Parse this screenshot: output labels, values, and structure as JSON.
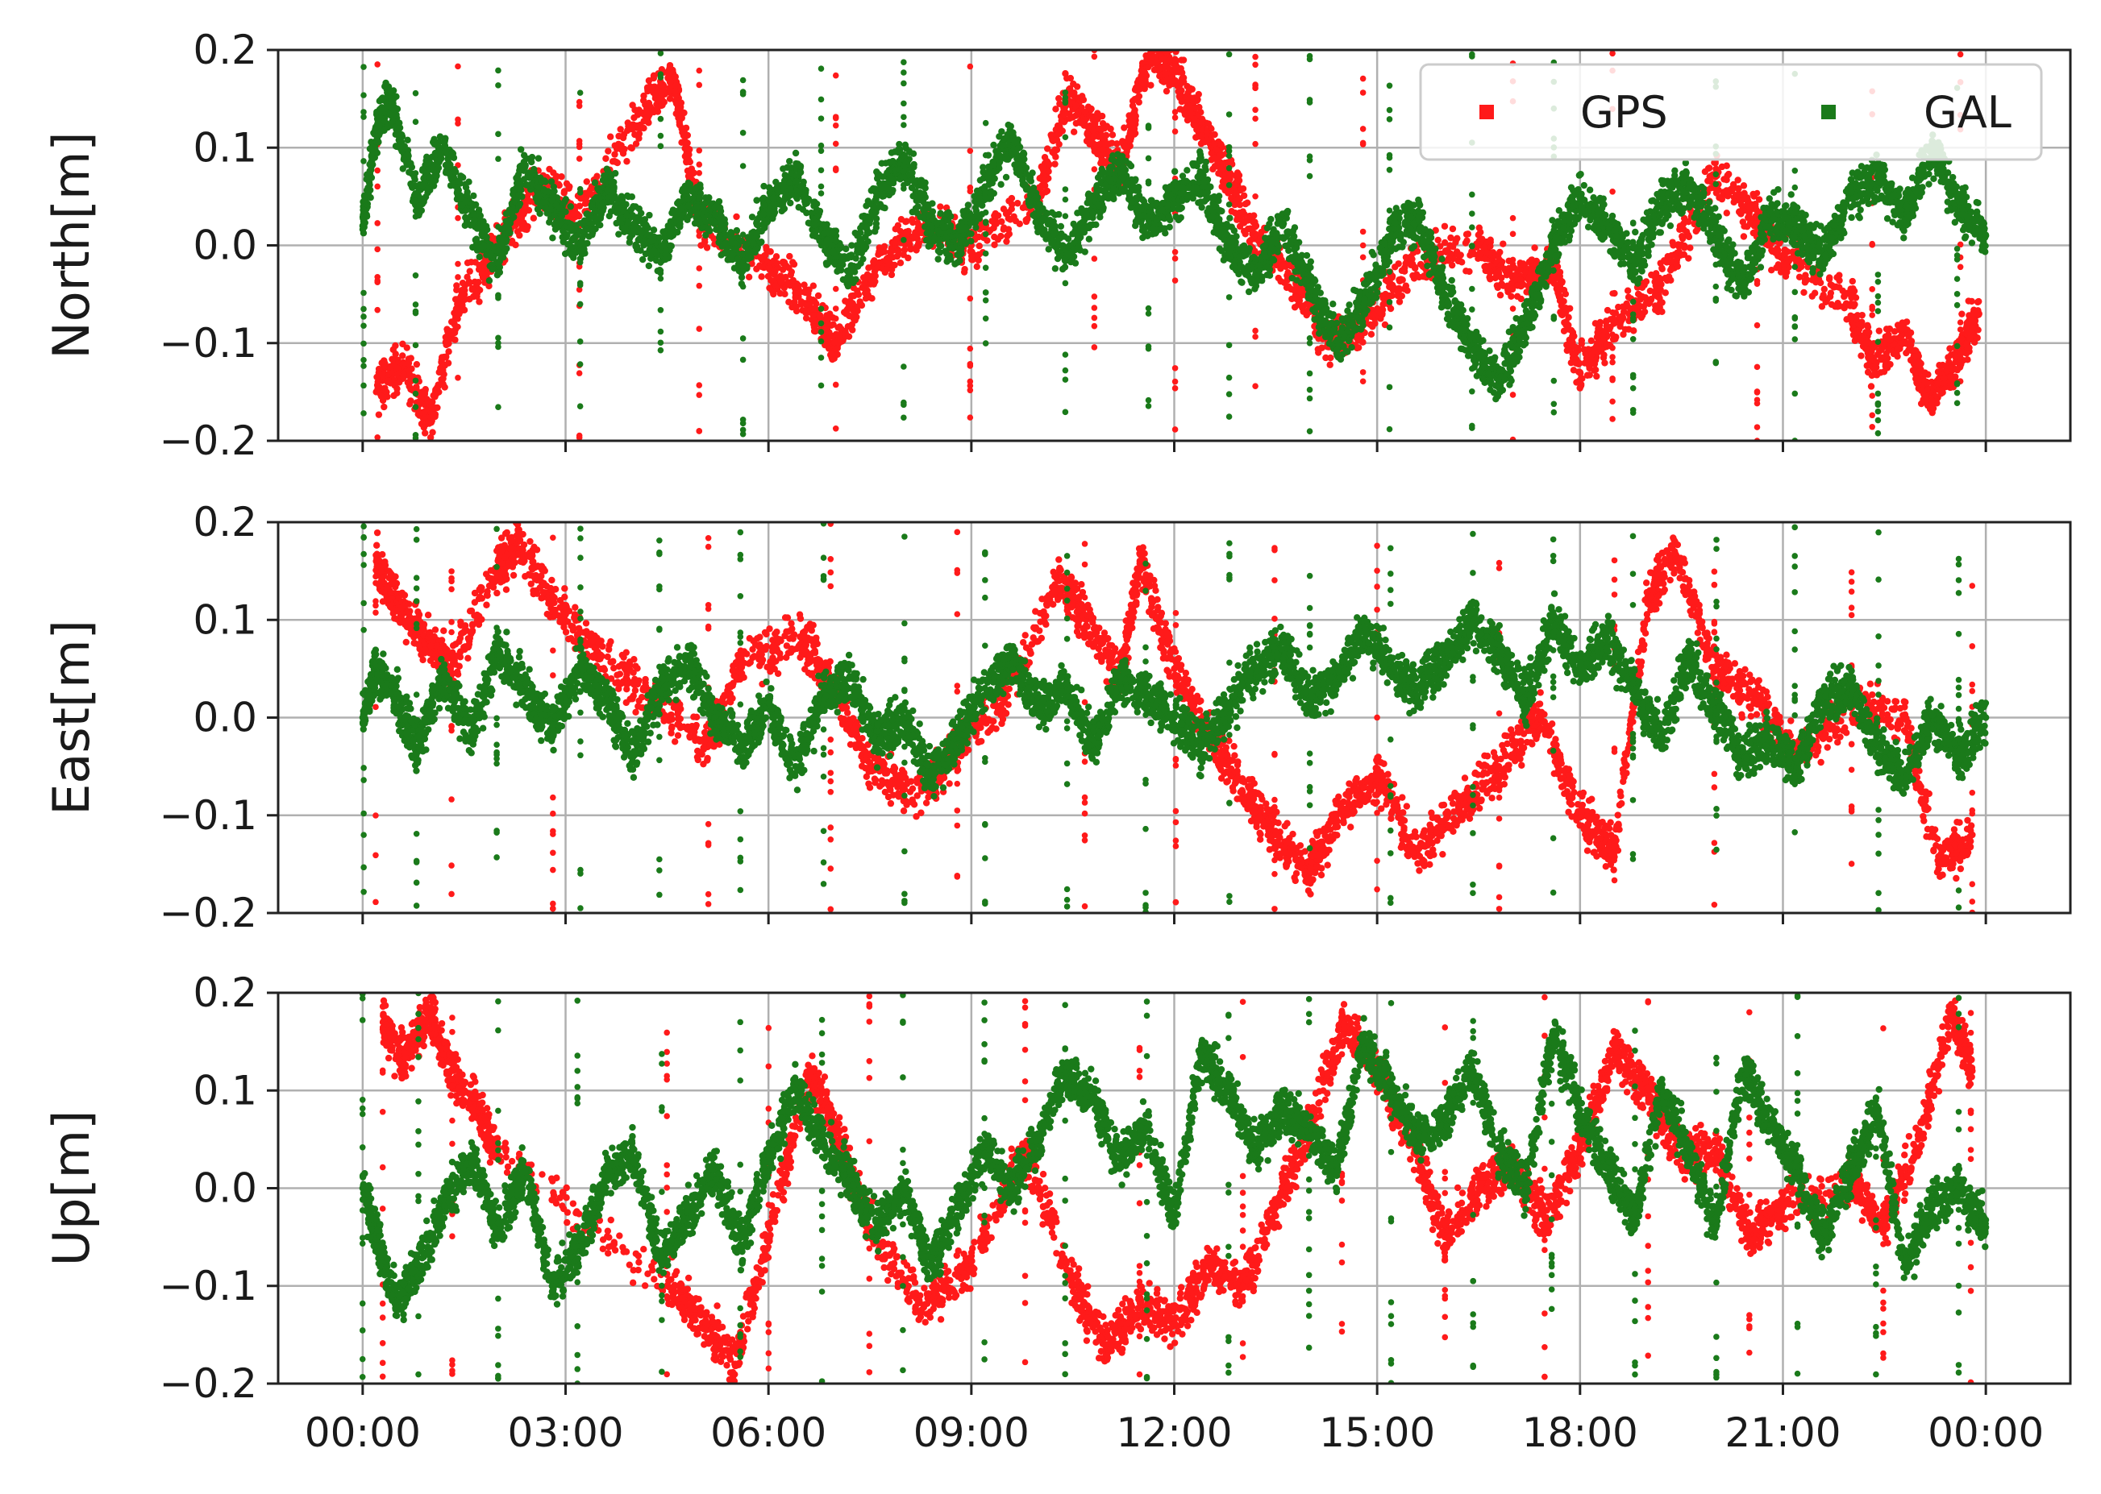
{
  "chart_data": [
    {
      "type": "scatter",
      "ylabel": "North[m]",
      "ylim": [
        -0.2,
        0.2
      ],
      "yticks": [
        0.2,
        0.1,
        0.0,
        -0.1,
        -0.2
      ],
      "ytick_labels": [
        "0.2",
        "0.1",
        "0.0",
        "−0.1",
        "−0.2"
      ],
      "xlim": [
        -1.25,
        25.25
      ],
      "xticks": [
        0,
        3,
        6,
        9,
        12,
        15,
        18,
        21,
        24
      ],
      "xtick_labels": [],
      "grid": true,
      "legend": {
        "placement": "top-right",
        "entries": [
          "GPS",
          "GAL"
        ]
      },
      "series": [
        {
          "name": "GPS",
          "color": "#ff1a1a",
          "x": [
            0.2,
            0.6,
            1.0,
            1.4,
            2.0,
            2.6,
            3.2,
            4.2,
            4.6,
            5.0,
            6.0,
            6.6,
            7.0,
            7.6,
            8.3,
            9.0,
            10.0,
            10.4,
            10.8,
            11.2,
            11.6,
            12.0,
            12.4,
            12.8,
            13.2,
            13.8,
            14.3,
            14.8,
            15.5,
            16.5,
            17.0,
            17.6,
            18.0,
            18.5,
            19.2,
            20.0,
            20.6,
            21.0,
            22.0,
            22.3,
            22.8,
            23.2,
            23.6,
            23.9
          ],
          "y": [
            -0.15,
            -0.12,
            -0.18,
            -0.06,
            0.0,
            0.06,
            0.03,
            0.14,
            0.17,
            0.02,
            -0.02,
            -0.06,
            -0.1,
            -0.02,
            0.02,
            0.0,
            0.05,
            0.15,
            0.12,
            0.08,
            0.19,
            0.18,
            0.12,
            0.07,
            0.01,
            -0.04,
            -0.1,
            -0.08,
            -0.02,
            0.0,
            -0.04,
            -0.02,
            -0.13,
            -0.08,
            -0.04,
            0.07,
            0.03,
            -0.01,
            -0.06,
            -0.12,
            -0.09,
            -0.16,
            -0.11,
            -0.07
          ]
        },
        {
          "name": "GAL",
          "color": "#1a7a1a",
          "x": [
            0.0,
            0.2,
            0.4,
            0.8,
            1.2,
            1.6,
            2.0,
            2.4,
            2.8,
            3.2,
            3.6,
            4.0,
            4.4,
            4.8,
            5.2,
            5.6,
            6.0,
            6.4,
            6.8,
            7.2,
            7.6,
            8.0,
            8.4,
            8.8,
            9.2,
            9.6,
            10.0,
            10.4,
            10.8,
            11.2,
            11.6,
            12.0,
            12.4,
            12.8,
            13.2,
            13.6,
            14.0,
            14.4,
            14.8,
            15.2,
            15.6,
            16.0,
            16.4,
            16.8,
            17.2,
            17.6,
            18.0,
            18.4,
            18.8,
            19.2,
            19.6,
            20.0,
            20.4,
            20.8,
            21.2,
            21.6,
            22.0,
            22.4,
            22.8,
            23.2,
            23.6,
            24.0
          ],
          "y": [
            0.02,
            0.12,
            0.15,
            0.05,
            0.1,
            0.03,
            -0.02,
            0.08,
            0.04,
            0.0,
            0.06,
            0.02,
            -0.01,
            0.05,
            0.03,
            -0.02,
            0.04,
            0.07,
            0.01,
            -0.03,
            0.05,
            0.09,
            0.02,
            0.0,
            0.06,
            0.11,
            0.03,
            -0.01,
            0.04,
            0.08,
            0.02,
            0.05,
            0.07,
            0.0,
            -0.03,
            0.02,
            -0.04,
            -0.1,
            -0.06,
            0.01,
            0.03,
            -0.05,
            -0.1,
            -0.14,
            -0.08,
            0.0,
            0.05,
            0.02,
            -0.02,
            0.04,
            0.06,
            0.01,
            -0.04,
            0.03,
            0.02,
            -0.01,
            0.05,
            0.07,
            0.03,
            0.1,
            0.04,
            0.01
          ]
        }
      ]
    },
    {
      "type": "scatter",
      "ylabel": "East[m]",
      "ylim": [
        -0.2,
        0.2
      ],
      "yticks": [
        0.2,
        0.1,
        0.0,
        -0.1,
        -0.2
      ],
      "ytick_labels": [
        "0.2",
        "0.1",
        "0.0",
        "−0.1",
        "−0.2"
      ],
      "xlim": [
        -1.25,
        25.25
      ],
      "xticks": [
        0,
        3,
        6,
        9,
        12,
        15,
        18,
        21,
        24
      ],
      "xtick_labels": [],
      "grid": true,
      "series": [
        {
          "name": "GPS",
          "color": "#ff1a1a",
          "x": [
            0.2,
            0.5,
            0.9,
            1.3,
            2.0,
            2.3,
            2.8,
            3.5,
            4.3,
            5.1,
            5.6,
            6.5,
            6.9,
            7.5,
            8.2,
            8.8,
            9.5,
            10.3,
            10.7,
            11.2,
            11.5,
            12.0,
            12.6,
            13.1,
            13.5,
            14.0,
            14.4,
            15.0,
            15.6,
            16.2,
            16.8,
            17.4,
            18.0,
            18.5,
            19.0,
            19.4,
            20.0,
            20.6,
            21.2,
            22.0,
            22.8,
            23.3,
            23.8
          ],
          "y": [
            0.16,
            0.12,
            0.08,
            0.05,
            0.15,
            0.18,
            0.12,
            0.06,
            0.02,
            -0.03,
            0.06,
            0.08,
            0.04,
            -0.05,
            -0.08,
            -0.03,
            0.02,
            0.14,
            0.1,
            0.04,
            0.16,
            0.05,
            -0.03,
            -0.08,
            -0.12,
            -0.16,
            -0.1,
            -0.06,
            -0.14,
            -0.09,
            -0.05,
            0.0,
            -0.1,
            -0.14,
            0.12,
            0.17,
            0.05,
            0.02,
            -0.04,
            0.01,
            0.0,
            -0.15,
            -0.12
          ]
        },
        {
          "name": "GAL",
          "color": "#1a7a1a",
          "x": [
            0.0,
            0.2,
            0.5,
            0.8,
            1.2,
            1.6,
            2.0,
            2.4,
            2.8,
            3.2,
            3.6,
            4.0,
            4.4,
            4.8,
            5.2,
            5.6,
            6.0,
            6.4,
            6.8,
            7.2,
            7.6,
            8.0,
            8.4,
            8.8,
            9.2,
            9.6,
            10.0,
            10.4,
            10.8,
            11.2,
            11.6,
            12.0,
            12.4,
            12.8,
            13.2,
            13.6,
            14.0,
            14.4,
            14.8,
            15.2,
            15.6,
            16.0,
            16.4,
            16.8,
            17.2,
            17.6,
            18.0,
            18.4,
            18.8,
            19.2,
            19.6,
            20.0,
            20.4,
            20.8,
            21.2,
            21.6,
            22.0,
            22.4,
            22.8,
            23.2,
            23.6,
            24.0
          ],
          "y": [
            0.0,
            0.05,
            0.02,
            -0.03,
            0.04,
            -0.02,
            0.07,
            0.03,
            -0.01,
            0.05,
            0.02,
            -0.04,
            0.03,
            0.06,
            0.0,
            -0.03,
            0.01,
            -0.05,
            0.02,
            0.04,
            -0.02,
            0.0,
            -0.06,
            -0.02,
            0.03,
            0.06,
            0.01,
            0.03,
            -0.03,
            0.04,
            0.02,
            0.0,
            -0.03,
            0.01,
            0.05,
            0.07,
            0.02,
            0.04,
            0.09,
            0.05,
            0.03,
            0.06,
            0.1,
            0.07,
            0.02,
            0.1,
            0.05,
            0.08,
            0.03,
            -0.02,
            0.06,
            0.01,
            -0.04,
            -0.02,
            -0.05,
            0.02,
            0.03,
            -0.03,
            -0.06,
            0.0,
            -0.04,
            0.0
          ]
        }
      ]
    },
    {
      "type": "scatter",
      "ylabel": "Up[m]",
      "ylim": [
        -0.2,
        0.2
      ],
      "yticks": [
        0.2,
        0.1,
        0.0,
        -0.1,
        -0.2
      ],
      "ytick_labels": [
        "0.2",
        "0.1",
        "0.0",
        "−0.1",
        "−0.2"
      ],
      "xlim": [
        -1.25,
        25.25
      ],
      "xticks": [
        0,
        3,
        6,
        9,
        12,
        15,
        18,
        21,
        24
      ],
      "xtick_labels": [
        "00:00",
        "03:00",
        "06:00",
        "09:00",
        "12:00",
        "15:00",
        "18:00",
        "21:00",
        "00:00"
      ],
      "grid": true,
      "series": [
        {
          "name": "GPS",
          "color": "#ff1a1a",
          "x": [
            0.3,
            0.6,
            1.0,
            1.3,
            1.7,
            2.0,
            4.5,
            5.0,
            5.5,
            6.0,
            6.6,
            7.0,
            7.5,
            8.3,
            9.0,
            9.8,
            10.5,
            11.0,
            11.5,
            12.0,
            12.5,
            13.0,
            13.5,
            14.0,
            14.5,
            15.0,
            15.5,
            16.0,
            16.5,
            17.0,
            17.5,
            18.0,
            18.5,
            19.0,
            19.5,
            20.0,
            20.5,
            21.0,
            22.0,
            22.5,
            23.0,
            23.5,
            23.8
          ],
          "y": [
            0.17,
            0.13,
            0.18,
            0.12,
            0.08,
            0.04,
            -0.1,
            -0.13,
            -0.18,
            -0.05,
            0.12,
            0.06,
            -0.04,
            -0.12,
            -0.08,
            0.04,
            -0.1,
            -0.16,
            -0.12,
            -0.14,
            -0.08,
            -0.1,
            -0.02,
            0.06,
            0.17,
            0.12,
            0.05,
            -0.05,
            0.0,
            0.02,
            -0.03,
            0.04,
            0.14,
            0.1,
            0.03,
            0.04,
            -0.05,
            -0.02,
            0.01,
            -0.04,
            0.05,
            0.18,
            0.12
          ]
        },
        {
          "name": "GAL",
          "color": "#1a7a1a",
          "x": [
            0.0,
            0.2,
            0.5,
            0.8,
            1.2,
            1.6,
            2.0,
            2.4,
            2.8,
            3.2,
            3.6,
            4.0,
            4.4,
            4.8,
            5.2,
            5.6,
            6.0,
            6.4,
            6.8,
            7.2,
            7.6,
            8.0,
            8.4,
            8.8,
            9.2,
            9.6,
            10.0,
            10.4,
            10.8,
            11.2,
            11.6,
            12.0,
            12.4,
            12.8,
            13.2,
            13.6,
            14.0,
            14.4,
            14.8,
            15.2,
            15.6,
            16.0,
            16.4,
            16.8,
            17.2,
            17.6,
            18.0,
            18.4,
            18.8,
            19.2,
            19.6,
            20.0,
            20.4,
            20.8,
            21.2,
            21.6,
            22.0,
            22.4,
            22.8,
            23.2,
            23.6,
            24.0
          ],
          "y": [
            0.0,
            -0.05,
            -0.12,
            -0.08,
            -0.02,
            0.03,
            -0.04,
            0.02,
            -0.1,
            -0.06,
            0.01,
            0.04,
            -0.07,
            -0.03,
            0.02,
            -0.06,
            0.03,
            0.1,
            0.05,
            0.01,
            -0.04,
            0.0,
            -0.08,
            -0.02,
            0.04,
            0.0,
            0.05,
            0.12,
            0.09,
            0.03,
            0.06,
            -0.03,
            0.14,
            0.1,
            0.04,
            0.08,
            0.06,
            0.02,
            0.15,
            0.1,
            0.05,
            0.07,
            0.12,
            0.04,
            0.0,
            0.16,
            0.08,
            0.02,
            -0.03,
            0.1,
            0.04,
            -0.04,
            0.12,
            0.07,
            0.02,
            -0.05,
            0.02,
            0.08,
            -0.08,
            -0.02,
            0.0,
            -0.04
          ]
        }
      ]
    }
  ]
}
